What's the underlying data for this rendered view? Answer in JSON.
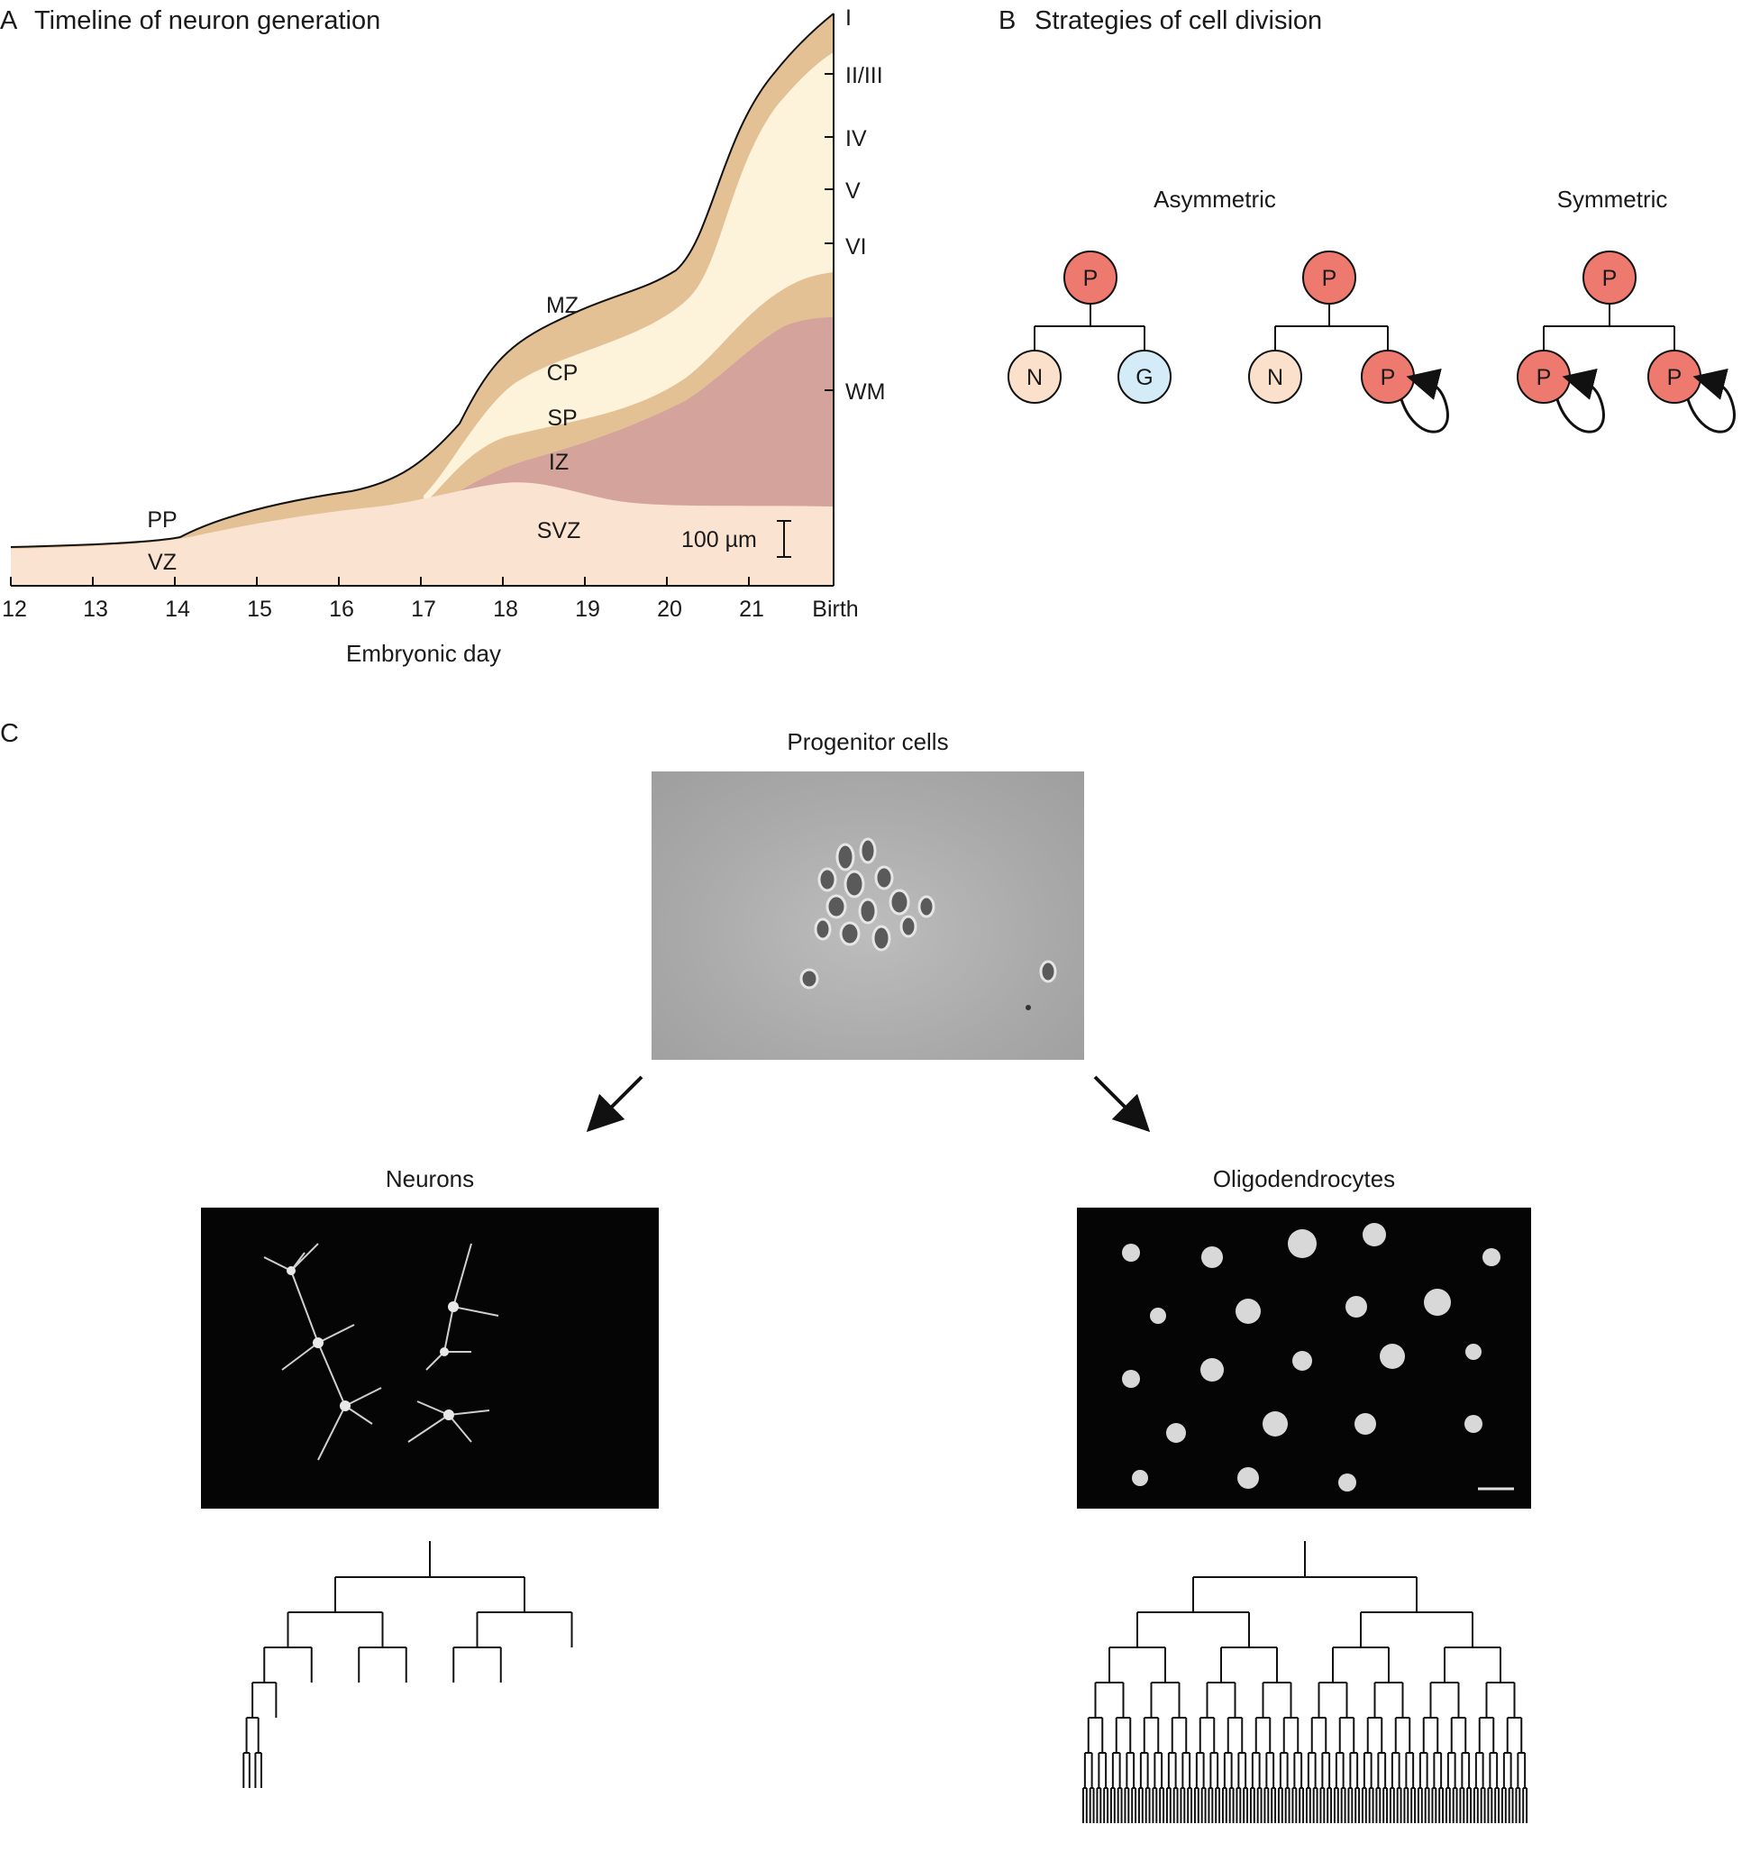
{
  "panel_a": {
    "letter": "A",
    "title": "Timeline of neuron generation",
    "x_axis_label": "Embryonic day",
    "x_ticks": [
      "12",
      "13",
      "14",
      "15",
      "16",
      "17",
      "18",
      "19",
      "20",
      "21",
      "Birth"
    ],
    "zones": {
      "pp": "PP",
      "vz": "VZ",
      "mz": "MZ",
      "cp": "CP",
      "sp": "SP",
      "iz": "IZ",
      "svz": "SVZ"
    },
    "layers": [
      "I",
      "II/III",
      "IV",
      "V",
      "VI",
      "WM"
    ],
    "scale_bar": "100 µm",
    "colors": {
      "vz": "#fbe3d2",
      "iz": "#d3a39c",
      "sp": "#e4c195",
      "cp": "#fdf2da",
      "mz": "#e4c195"
    }
  },
  "panel_b": {
    "letter": "B",
    "title": "Strategies of cell division",
    "asymmetric_label": "Asymmetric",
    "symmetric_label": "Symmetric",
    "progenitor": "P",
    "neuron": "N",
    "glia": "G",
    "colors": {
      "progenitor": "#ee7a6f",
      "neuron": "#fbe1cc",
      "glia": "#d3ecf7"
    }
  },
  "panel_c": {
    "letter": "C",
    "progenitor_label": "Progenitor cells",
    "neurons_label": "Neurons",
    "oligo_label": "Oligodendrocytes"
  }
}
